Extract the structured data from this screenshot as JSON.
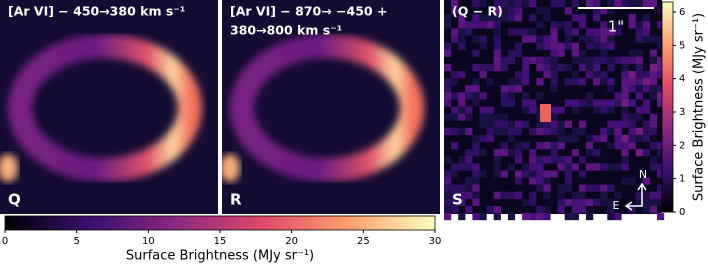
{
  "panels": [
    {
      "title_lines": [
        "[Ar VI] − 450→380 km s⁻¹"
      ],
      "label": "Q"
    },
    {
      "title_lines": [
        "[Ar VI] − 870→ −450 +",
        "380→800  km s⁻¹"
      ],
      "label": "R"
    },
    {
      "title_lines": [
        "(Q − R)"
      ],
      "label": "S"
    }
  ],
  "scale_bar": "1\"",
  "compass": {
    "north": "N",
    "east": "E"
  },
  "colorbars": [
    {
      "orientation": "horizontal",
      "label": "Surface Brightness (MJy sr⁻¹)",
      "lim": [
        0,
        30
      ],
      "ticks": [
        0,
        5,
        10,
        15,
        20,
        25,
        30
      ]
    },
    {
      "orientation": "vertical",
      "label": "Surface Brightness (MJy sr⁻¹)",
      "lim": [
        0,
        6.3
      ],
      "ticks": [
        0,
        1,
        2,
        3,
        4,
        5,
        6
      ]
    }
  ]
}
